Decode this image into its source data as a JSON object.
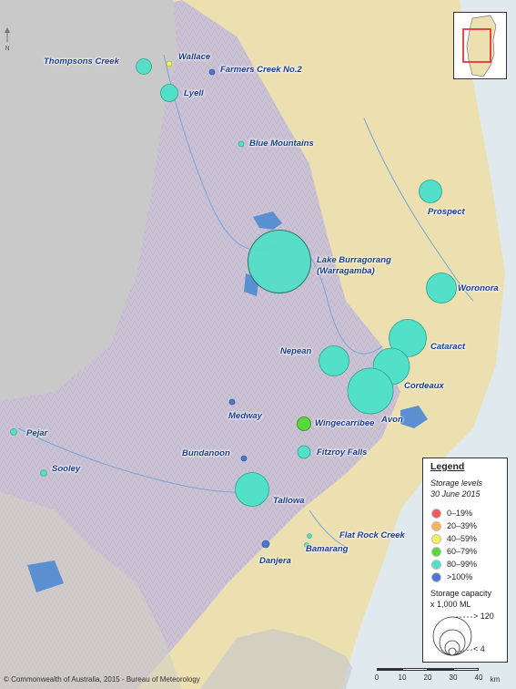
{
  "map": {
    "storages": [
      {
        "name": "Thompsons Creek",
        "level": "80-99%",
        "capacity": 28
      },
      {
        "name": "Wallace",
        "level": "40-59%",
        "capacity": 1
      },
      {
        "name": "Farmers Creek No.2",
        "level": ">100%",
        "capacity": 1
      },
      {
        "name": "Lyell",
        "level": "80-99%",
        "capacity": 32
      },
      {
        "name": "Blue Mountains",
        "level": "80-99%",
        "capacity": 1
      },
      {
        "name": "Prospect",
        "level": "80-99%",
        "capacity": 33
      },
      {
        "name": "Lake Burragorang (Warragamba)",
        "level": "80-99%",
        "capacity": 2027
      },
      {
        "name": "Woronora",
        "level": "80-99%",
        "capacity": 72
      },
      {
        "name": "Nepean",
        "level": "80-99%",
        "capacity": 68
      },
      {
        "name": "Cataract",
        "level": "80-99%",
        "capacity": 94
      },
      {
        "name": "Cordeaux",
        "level": "80-99%",
        "capacity": 94
      },
      {
        "name": "Avon",
        "level": "80-99%",
        "capacity": 146
      },
      {
        "name": "Medway",
        "level": ">100%",
        "capacity": 1
      },
      {
        "name": "Wingecarribee",
        "level": "60-79%",
        "capacity": 24
      },
      {
        "name": "Pejar",
        "level": "80-99%",
        "capacity": 9
      },
      {
        "name": "Bundanoon",
        "level": ">100%",
        "capacity": 1
      },
      {
        "name": "Fitzroy Falls",
        "level": "80-99%",
        "capacity": 10
      },
      {
        "name": "Sooley",
        "level": "80-99%",
        "capacity": 5
      },
      {
        "name": "Tallowa",
        "level": "80-99%",
        "capacity": 86
      },
      {
        "name": "Flat Rock Creek",
        "level": "80-99%",
        "capacity": 1
      },
      {
        "name": "Bamarang",
        "level": "80-99%",
        "capacity": 4
      },
      {
        "name": "Danjera",
        "level": ">100%",
        "capacity": 8
      }
    ]
  },
  "labels": {
    "thompsons_creek": "Thompsons Creek",
    "wallace": "Wallace",
    "farmers_creek": "Farmers Creek No.2",
    "lyell": "Lyell",
    "blue_mountains": "Blue Mountains",
    "prospect": "Prospect",
    "burragorang_1": "Lake Burragorang",
    "burragorang_2": "(Warragamba)",
    "woronora": "Woronora",
    "nepean": "Nepean",
    "cataract": "Cataract",
    "cordeaux": "Cordeaux",
    "avon": "Avon",
    "medway": "Medway",
    "wingecarribee": "Wingecarribee",
    "pejar": "Pejar",
    "bundanoon": "Bundanoon",
    "fitzroy_falls": "Fitzroy Falls",
    "sooley": "Sooley",
    "tallowa": "Tallowa",
    "flat_rock_creek": "Flat Rock Creek",
    "bamarang": "Bamarang",
    "danjera": "Danjera"
  },
  "legend": {
    "title": "Legend",
    "storage_levels": "Storage levels",
    "date": "30 June 2015",
    "levels": [
      {
        "label": "0–19%",
        "color": "#f05a5a"
      },
      {
        "label": "20–39%",
        "color": "#f7b25c"
      },
      {
        "label": "40–59%",
        "color": "#f4f05a"
      },
      {
        "label": "60–79%",
        "color": "#58d83a"
      },
      {
        "label": "80–99%",
        "color": "#52e0c8"
      },
      {
        "label": ">100%",
        "color": "#4a78d0"
      }
    ],
    "capacity_title": "Storage capacity",
    "capacity_unit": "x 1,000 ML",
    "capacity_max": "> 120",
    "capacity_min": "< 4"
  },
  "scale": {
    "ticks": [
      "0",
      "10",
      "20",
      "30",
      "40"
    ],
    "unit": "km"
  },
  "north_label": "N",
  "copyright": "© Commonwealth of Australia, 2015 - Bureau of Meteorology",
  "colors": {
    "ocean": "#dfe9ee",
    "lowland": "#ecdfb0",
    "ranges": "#cbc3d5",
    "grey_out": "#c9c9c9",
    "water": "#5a8fd1",
    "full_storage": "#52e0c8"
  }
}
